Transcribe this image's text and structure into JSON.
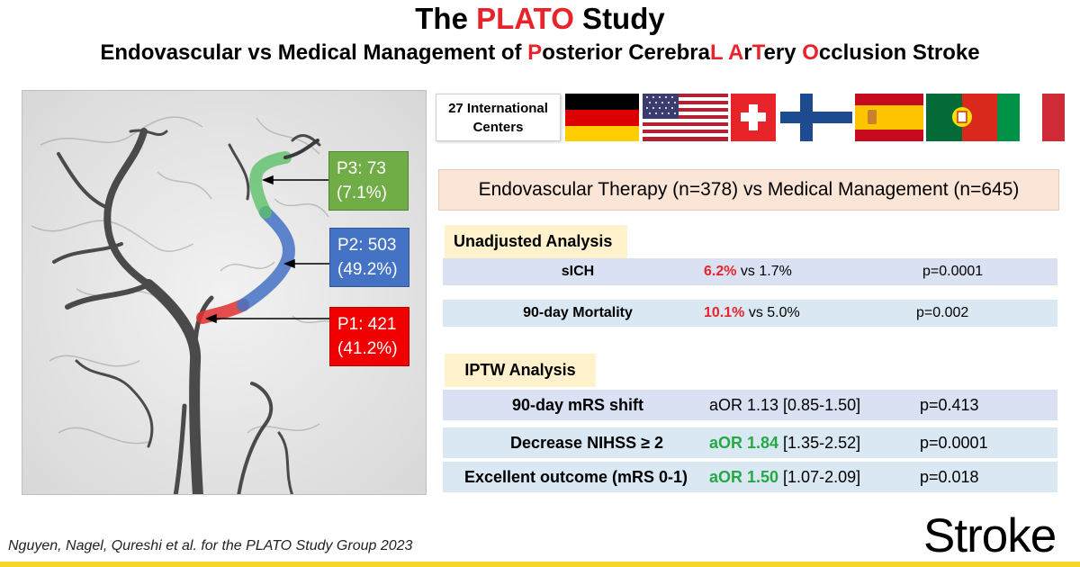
{
  "header": {
    "title_pre": "The ",
    "title_accent": "PLATO",
    "title_post": " Study",
    "subtitle": [
      {
        "text": "Endovascular vs Medical Management of ",
        "accent": false
      },
      {
        "text": "P",
        "accent": true
      },
      {
        "text": "osterior Cerebra",
        "accent": false
      },
      {
        "text": "L",
        "accent": true
      },
      {
        "text": " ",
        "accent": false
      },
      {
        "text": "A",
        "accent": true
      },
      {
        "text": "r",
        "accent": false
      },
      {
        "text": "T",
        "accent": true
      },
      {
        "text": "ery ",
        "accent": false
      },
      {
        "text": "O",
        "accent": true
      },
      {
        "text": "cclusion Stroke",
        "accent": false
      }
    ]
  },
  "colors": {
    "accent_red": "#e8242a",
    "p3_green": "#70ad47",
    "p2_blue": "#4472c4",
    "p1_red": "#f00000",
    "highlight_green": "#27a844",
    "comparison_bg": "#fbe5d6",
    "section_bg": "#fff2cc",
    "bottom_bar": "#f5d629"
  },
  "segments": [
    {
      "id": "p3",
      "line1": "P3: 73",
      "line2": "(7.1%)"
    },
    {
      "id": "p2",
      "line1": "P2: 503",
      "line2": "(49.2%)"
    },
    {
      "id": "p1",
      "line1": "P1: 421",
      "line2": "(41.2%)"
    }
  ],
  "centers": {
    "line1": "27 International",
    "line2": "Centers"
  },
  "flags": [
    "germany-flag",
    "usa-flag",
    "switzerland-flag",
    "finland-flag",
    "spain-flag",
    "portugal-flag",
    "italy-flag"
  ],
  "comparison": "Endovascular Therapy (n=378) vs Medical Management (n=645)",
  "unadjusted": {
    "label": "Unadjusted Analysis",
    "rows": [
      {
        "label": "sICH",
        "highlight": "6.2%",
        "rest": " vs 1.7%",
        "p": "p=0.0001"
      },
      {
        "label": "90-day Mortality",
        "highlight": "10.1%",
        "rest": " vs 5.0%",
        "p": "p=0.002"
      }
    ]
  },
  "iptw": {
    "label": "IPTW Analysis",
    "rows": [
      {
        "label": "90-day mRS shift",
        "highlight": "",
        "rest": "aOR 1.13 [0.85-1.50]",
        "p": "p=0.413"
      },
      {
        "label": "Decrease NIHSS ≥ 2",
        "highlight": "aOR 1.84",
        "rest": " [1.35-2.52]",
        "p": "p=0.0001"
      },
      {
        "label": "Excellent outcome (mRS 0-1)",
        "highlight": "aOR 1.50",
        "rest": " [1.07-2.09]",
        "p": "p=0.018"
      }
    ]
  },
  "footer": {
    "citation": "Nguyen, Nagel, Qureshi et al. for the PLATO Study Group 2023",
    "brand": "Stroke"
  }
}
